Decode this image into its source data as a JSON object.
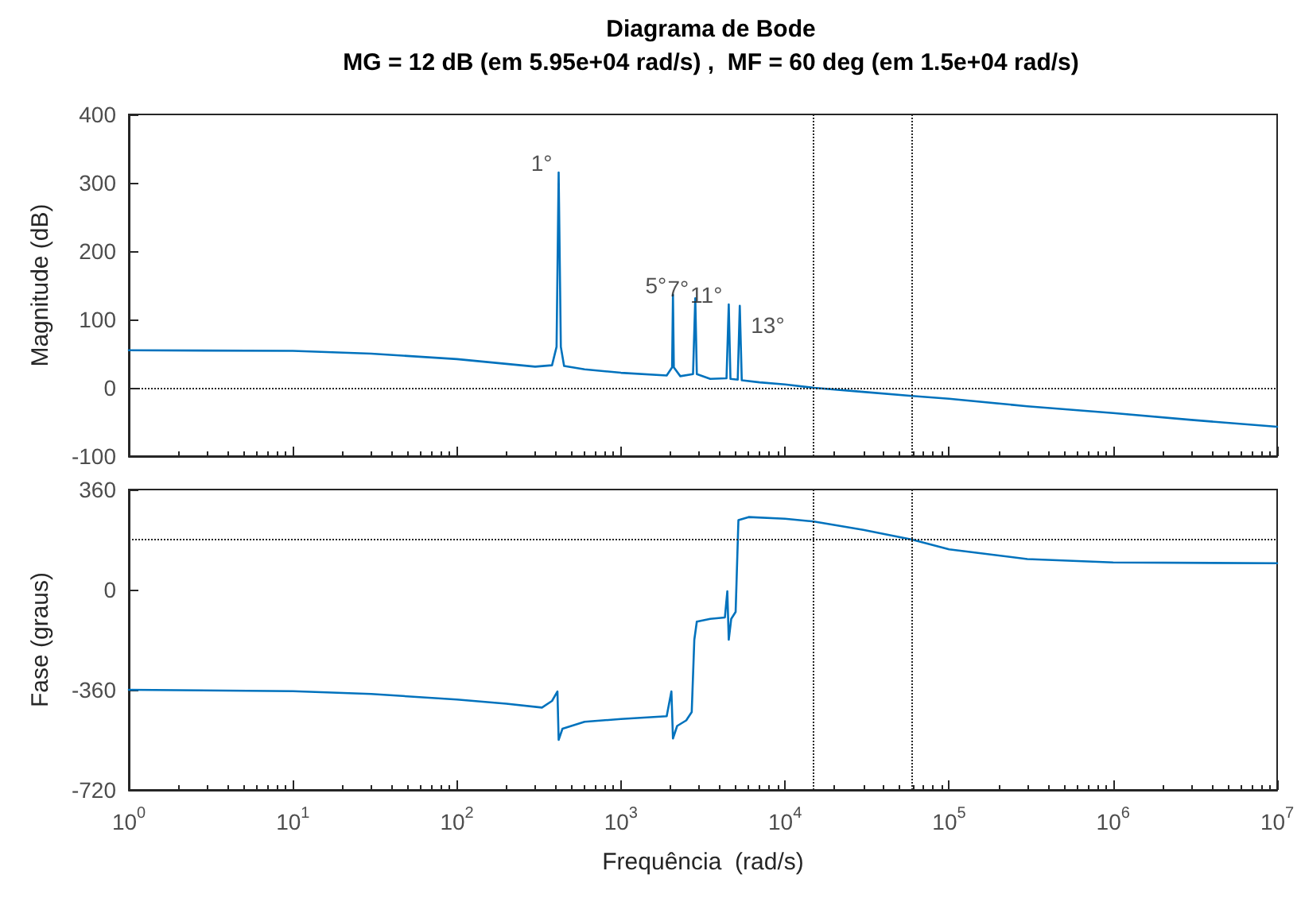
{
  "chart_data": [
    {
      "type": "line",
      "title": "Diagrama de Bode",
      "subtitle": "MG = 12 dB (em 5.95e+04 rad/s) ,  MF = 60 deg (em 1.5e+04 rad/s)",
      "ylabel": "Magnitude (dB)",
      "log": "x",
      "grid": false,
      "marker": "none",
      "line_style": "solid",
      "tick_labels": "y",
      "x": [
        1,
        10,
        30,
        100,
        200,
        300,
        380,
        405,
        417,
        430,
        450,
        600,
        1000,
        1900,
        2050,
        2075,
        2100,
        2300,
        2750,
        2838,
        2900,
        3500,
        4400,
        4540,
        4650,
        5150,
        5300,
        5450,
        7000,
        10000,
        15000,
        30000,
        59500,
        100000,
        300000,
        1000000,
        3000000,
        10000000
      ],
      "series": [
        {
          "color": "#0072bd",
          "values": [
            55,
            54,
            50,
            42,
            35,
            31,
            33,
            60,
            315,
            60,
            32,
            27,
            22,
            18,
            30,
            136,
            30,
            17,
            20,
            131,
            20,
            13,
            14,
            122,
            13,
            12,
            120,
            11,
            8,
            5,
            0,
            -6,
            -12,
            -16,
            -27,
            -37,
            -47,
            -57
          ]
        }
      ],
      "xlim": [
        1,
        10000000
      ],
      "xticks": [
        {
          "value": 1,
          "label": null
        },
        {
          "value": 10,
          "label": null
        },
        {
          "value": 100,
          "label": null
        },
        {
          "value": 1000,
          "label": null
        },
        {
          "value": 10000,
          "label": null
        },
        {
          "value": 100000,
          "label": null
        },
        {
          "value": 1000000,
          "label": null
        },
        {
          "value": 10000000,
          "label": null
        }
      ],
      "ylim": [
        -100,
        400
      ],
      "yticks": [
        -100,
        0,
        100,
        200,
        300,
        400
      ],
      "ref_lines": [
        {
          "axis": "y",
          "value": 0,
          "color": "#262626",
          "line_style": "dotted"
        },
        {
          "axis": "x",
          "value": 15000,
          "color": "#262626",
          "line_style": "dotted"
        },
        {
          "axis": "x",
          "value": 59500,
          "color": "#262626",
          "line_style": "dotted"
        }
      ],
      "annotations": [
        {
          "text": "1°",
          "x": 417,
          "y": 315
        },
        {
          "text": "5°",
          "x": 2075,
          "y": 136
        },
        {
          "text": "7°",
          "x": 2838,
          "y": 131
        },
        {
          "text": "11°",
          "x": 4540,
          "y": 122
        },
        {
          "text": "13°",
          "x": 5300,
          "y": 120
        }
      ]
    },
    {
      "type": "line",
      "ylabel": "Fase (graus)",
      "xlabel": "Frequência  (rad/s)",
      "log": "x",
      "grid": false,
      "marker": "none",
      "line_style": "solid",
      "x": [
        1,
        10,
        30,
        100,
        200,
        330,
        380,
        410,
        417,
        440,
        600,
        1000,
        1900,
        2030,
        2075,
        2200,
        2500,
        2700,
        2800,
        2900,
        3500,
        4300,
        4450,
        4540,
        4700,
        5000,
        5200,
        6000,
        10000,
        15000,
        30000,
        59500,
        100000,
        300000,
        1000000,
        10000000
      ],
      "series": [
        {
          "color": "#0072bd",
          "values": [
            -360,
            -365,
            -375,
            -395,
            -410,
            -424,
            -400,
            -366,
            -540,
            -500,
            -475,
            -465,
            -455,
            -366,
            -535,
            -490,
            -470,
            -440,
            -180,
            -115,
            -105,
            -100,
            -6,
            -180,
            -105,
            -80,
            250,
            261,
            255,
            245,
            215,
            180,
            145,
            110,
            98,
            95
          ]
        }
      ],
      "xlim": [
        1,
        10000000
      ],
      "xticks": [
        {
          "value": 1,
          "label": "10$^{0}$"
        },
        {
          "value": 10,
          "label": "10$^{1}$"
        },
        {
          "value": 100,
          "label": "10$^{2}$"
        },
        {
          "value": 1000,
          "label": "10$^{3}$"
        },
        {
          "value": 10000,
          "label": "10$^{4}$"
        },
        {
          "value": 100000,
          "label": "10$^{5}$"
        },
        {
          "value": 1000000,
          "label": "10$^{6}$"
        },
        {
          "value": 10000000,
          "label": "10$^{7}$"
        }
      ],
      "ylim": [
        -720,
        360
      ],
      "yticks": [
        -720,
        -360,
        0,
        360
      ],
      "ref_lines": [
        {
          "axis": "y",
          "value": 180,
          "color": "#262626",
          "line_style": "dotted"
        },
        {
          "axis": "x",
          "value": 15000,
          "color": "#262626",
          "line_style": "dotted"
        },
        {
          "axis": "x",
          "value": 59500,
          "color": "#262626",
          "line_style": "dotted"
        }
      ]
    }
  ]
}
